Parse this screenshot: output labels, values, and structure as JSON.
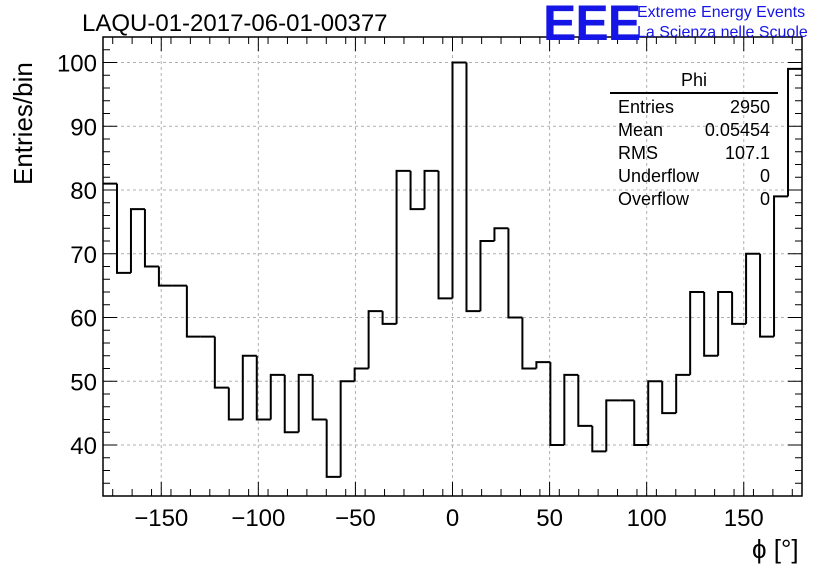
{
  "title": "LAQU-01-2017-06-01-00377",
  "logo": {
    "text": "EEE",
    "line1": "Extreme Energy Events",
    "line2": "La Scienza nelle Scuole",
    "color": "#1515e6"
  },
  "stats": {
    "name": "Phi",
    "rows": [
      {
        "label": "Entries",
        "value": "2950"
      },
      {
        "label": "Mean",
        "value": "0.05454"
      },
      {
        "label": "RMS",
        "value": "107.1"
      },
      {
        "label": "Underflow",
        "value": "0"
      },
      {
        "label": "Overflow",
        "value": "0"
      }
    ]
  },
  "chart_data": {
    "type": "histogram",
    "title": "LAQU-01-2017-06-01-00377",
    "xlabel": "ϕ [°]",
    "ylabel": "Entries/bin",
    "xlim": [
      -180,
      180
    ],
    "ylim": [
      32,
      104
    ],
    "xticks": [
      -150,
      -100,
      -50,
      0,
      50,
      100,
      150
    ],
    "yticks": [
      40,
      50,
      60,
      70,
      80,
      90,
      100
    ],
    "grid": true,
    "bin_width": 7.2,
    "bin_edges_start": -180,
    "values": [
      81,
      67,
      77,
      68,
      65,
      65,
      57,
      57,
      49,
      44,
      54,
      44,
      51,
      42,
      51,
      44,
      35,
      50,
      52,
      61,
      59,
      83,
      77,
      83,
      63,
      100,
      61,
      72,
      74,
      60,
      52,
      53,
      40,
      51,
      43,
      39,
      47,
      47,
      40,
      50,
      45,
      51,
      64,
      54,
      64,
      59,
      70,
      57,
      79,
      99
    ]
  }
}
